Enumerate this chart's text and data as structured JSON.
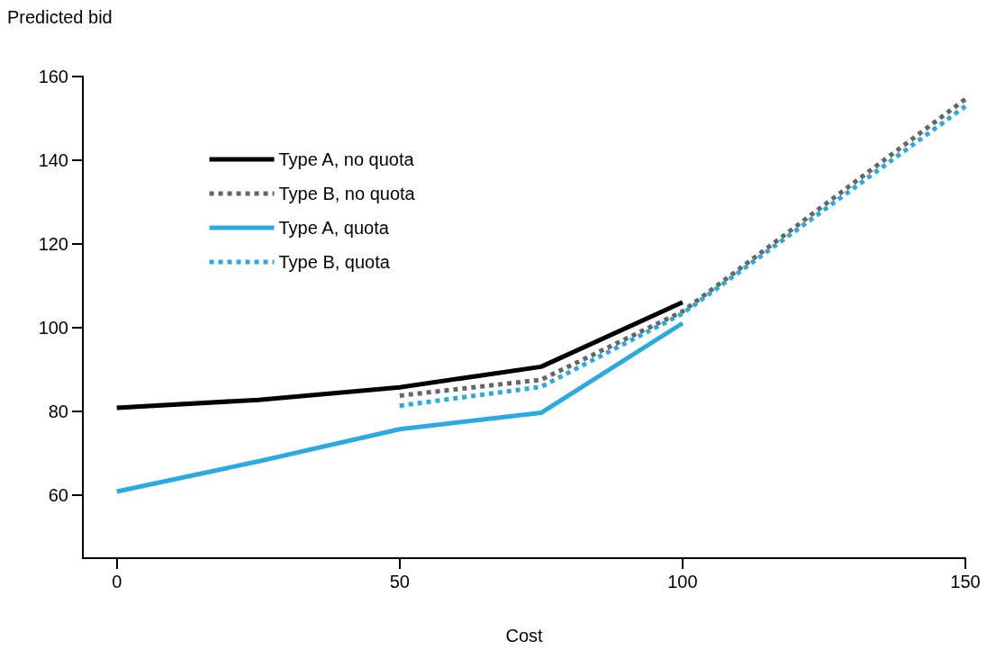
{
  "chart_data": {
    "type": "line",
    "xlabel": "Cost",
    "ylabel": "Predicted bid",
    "xlim": [
      -6,
      150
    ],
    "xticks": [
      0,
      50,
      100,
      150
    ],
    "ylim": [
      45,
      160
    ],
    "yticks": [
      60,
      80,
      100,
      120,
      140,
      160
    ],
    "grid": false,
    "legend": "top left",
    "marker": "none",
    "series": [
      {
        "name": "Type A, no quota",
        "color": "#000000",
        "line_style": "solid",
        "x": [
          0,
          25,
          50,
          75,
          100
        ],
        "values": [
          80.9,
          82.8,
          85.8,
          90.7,
          106.1
        ]
      },
      {
        "name": "Type B, no quota",
        "color": "#666666",
        "line_style": "dotted",
        "x": [
          50,
          75,
          100,
          150
        ],
        "values": [
          83.8,
          87.6,
          103.9,
          154.6
        ]
      },
      {
        "name": "Type A, quota",
        "color": "#29abe2",
        "line_style": "solid",
        "x": [
          0,
          25,
          50,
          75,
          100
        ],
        "values": [
          60.9,
          68.1,
          75.8,
          79.7,
          101.1
        ]
      },
      {
        "name": "Type B, quota",
        "color": "#29abe2",
        "line_style": "dotted",
        "x": [
          50,
          75,
          100,
          150
        ],
        "values": [
          81.4,
          85.9,
          103.4,
          152.9
        ]
      }
    ]
  }
}
